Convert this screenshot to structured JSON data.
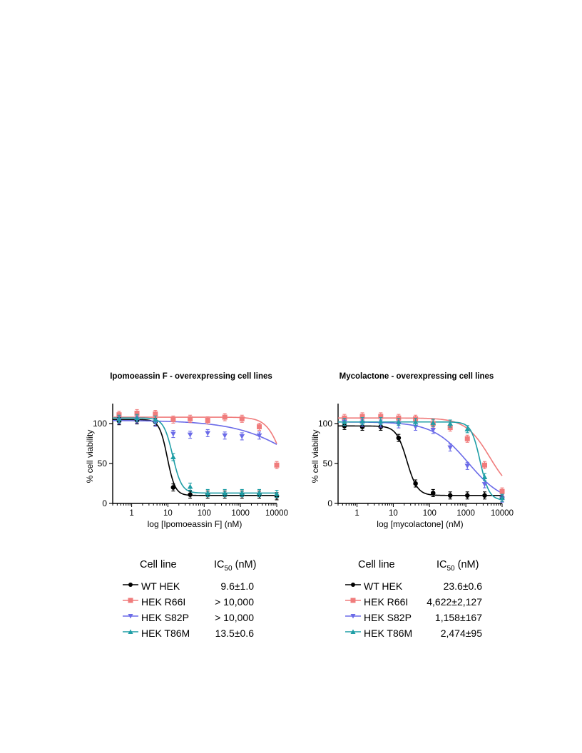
{
  "chart_data": [
    {
      "type": "scatter",
      "title": "Ipomoeassin F - overexpressing cell lines",
      "xlabel": "log [Ipomoeassin F] (nM)",
      "ylabel": "% cell viability",
      "xscale": "log",
      "xlim": [
        0.3,
        10000
      ],
      "ylim": [
        0,
        125
      ],
      "xticks": [
        1,
        10,
        100,
        1000,
        10000
      ],
      "xtick_labels": [
        "1",
        "10",
        "100",
        "1000",
        "10000"
      ],
      "yticks": [
        0,
        50,
        100
      ],
      "ytick_labels": [
        "0",
        "50",
        "100"
      ],
      "grid": false,
      "x": [
        0.45,
        1.4,
        4.5,
        14,
        41,
        125,
        370,
        1100,
        3300,
        10000
      ],
      "series": [
        {
          "name": "WT HEK",
          "color": "#000000",
          "marker": "circle",
          "values": [
            103,
            104,
            102,
            20,
            11,
            11,
            11,
            11,
            11,
            9
          ],
          "fit": {
            "top": 105,
            "bottom": 10,
            "ic50": 9.6,
            "hill": 4
          }
        },
        {
          "name": "HEK R66I",
          "color": "#f07c7c",
          "marker": "square",
          "values": [
            111,
            113,
            112,
            105,
            106,
            104,
            108,
            106,
            96,
            48
          ],
          "fit": {
            "top": 108,
            "bottom": 0,
            "ic50": 15000,
            "hill": 2
          }
        },
        {
          "name": "HEK S82P",
          "color": "#6b6be8",
          "marker": "triangle-down",
          "values": [
            104,
            105,
            101,
            87,
            86,
            88,
            85,
            84,
            85,
            null
          ],
          "fit": {
            "top": 104,
            "bottom": 0,
            "ic50": 60000,
            "hill": 0.5
          }
        },
        {
          "name": "HEK T86M",
          "color": "#1f9ea6",
          "marker": "triangle-up",
          "values": [
            106,
            107,
            105,
            58,
            21,
            13,
            13,
            13,
            13,
            12
          ],
          "fit": {
            "top": 107,
            "bottom": 13,
            "ic50": 13.5,
            "hill": 3.5
          }
        }
      ]
    },
    {
      "type": "scatter",
      "title": "Mycolactone - overexpressing cell lines",
      "xlabel": "log [mycolactone] (nM)",
      "ylabel": "% cell viability",
      "xscale": "log",
      "xlim": [
        0.3,
        10000
      ],
      "ylim": [
        0,
        125
      ],
      "xticks": [
        1,
        10,
        100,
        1000,
        10000
      ],
      "xtick_labels": [
        "1",
        "10",
        "100",
        "1000",
        "10000"
      ],
      "yticks": [
        0,
        50,
        100
      ],
      "ytick_labels": [
        "0",
        "50",
        "100"
      ],
      "grid": false,
      "x": [
        0.45,
        1.4,
        4.5,
        14,
        41,
        125,
        370,
        1100,
        3300,
        10000
      ],
      "series": [
        {
          "name": "WT HEK",
          "color": "#000000",
          "marker": "circle",
          "values": [
            97,
            96,
            96,
            82,
            25,
            13,
            10,
            10,
            10,
            7
          ],
          "fit": {
            "top": 97,
            "bottom": 10,
            "ic50": 23.6,
            "hill": 3
          }
        },
        {
          "name": "HEK R66I",
          "color": "#f07c7c",
          "marker": "square",
          "values": [
            107,
            109,
            109,
            107,
            106,
            100,
            95,
            81,
            48,
            15
          ],
          "fit": {
            "top": 107,
            "bottom": 8,
            "ic50": 4622,
            "hill": 1.3
          }
        },
        {
          "name": "HEK S82P",
          "color": "#6b6be8",
          "marker": "triangle-down",
          "values": [
            102,
            101,
            100,
            99,
            96,
            92,
            70,
            47,
            24,
            6
          ],
          "fit": {
            "top": 102,
            "bottom": 0,
            "ic50": 1158,
            "hill": 0.9
          }
        },
        {
          "name": "HEK T86M",
          "color": "#1f9ea6",
          "marker": "triangle-up",
          "values": [
            102,
            103,
            103,
            102,
            102,
            101,
            100,
            93,
            33,
            7
          ],
          "fit": {
            "top": 102,
            "bottom": 4,
            "ic50": 2474,
            "hill": 3.5
          }
        }
      ]
    }
  ],
  "tables": [
    {
      "header_cell_line": "Cell line",
      "header_ic_prefix": "IC",
      "header_ic_sub": "50",
      "header_ic_suffix": " (nM)",
      "rows": [
        {
          "name": "WT HEK",
          "value": "9.6±1.0"
        },
        {
          "name": "HEK R66I",
          "value": "> 10,000"
        },
        {
          "name": "HEK S82P",
          "value": "> 10,000"
        },
        {
          "name": "HEK T86M",
          "value": "13.5±0.6"
        }
      ]
    },
    {
      "header_cell_line": "Cell line",
      "header_ic_prefix": "IC",
      "header_ic_sub": "50",
      "header_ic_suffix": " (nM)",
      "rows": [
        {
          "name": "WT HEK",
          "value": "23.6±0.6"
        },
        {
          "name": "HEK R66I",
          "value": "4,622±2,127"
        },
        {
          "name": "HEK S82P",
          "value": "1,158±167"
        },
        {
          "name": "HEK T86M",
          "value": "2,474±95"
        }
      ]
    }
  ]
}
